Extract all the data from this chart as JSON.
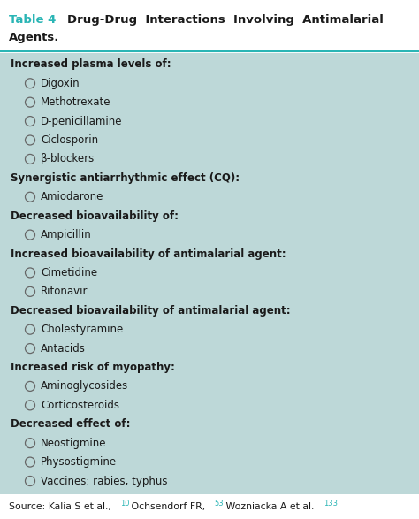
{
  "title_label": "Table 4",
  "title_color": "#2ab5b5",
  "bg_color": "#bdd8d8",
  "text_color": "#1a1a1a",
  "circle_color": "#666666",
  "rows": [
    {
      "type": "header",
      "text": "Increased plasma levels of:"
    },
    {
      "type": "item",
      "text": "Digoxin"
    },
    {
      "type": "item",
      "text": "Methotrexate"
    },
    {
      "type": "item",
      "text": "D-penicillamine"
    },
    {
      "type": "item",
      "text": "Ciclosporin"
    },
    {
      "type": "item",
      "text": "β-blockers"
    },
    {
      "type": "header",
      "text": "Synergistic antiarrhythmic effect (CQ):"
    },
    {
      "type": "item",
      "text": "Amiodarone"
    },
    {
      "type": "header",
      "text": "Decreased bioavailability of:"
    },
    {
      "type": "item",
      "text": "Ampicillin"
    },
    {
      "type": "header",
      "text": "Increased bioavailability of antimalarial agent:"
    },
    {
      "type": "item",
      "text": "Cimetidine"
    },
    {
      "type": "item",
      "text": "Ritonavir"
    },
    {
      "type": "header",
      "text": "Decreased bioavailability of antimalarial agent:"
    },
    {
      "type": "item",
      "text": "Cholestyramine"
    },
    {
      "type": "item",
      "text": "Antacids"
    },
    {
      "type": "header",
      "text": "Increased risk of myopathy:"
    },
    {
      "type": "item",
      "text": "Aminoglycosides"
    },
    {
      "type": "item",
      "text": "Corticosteroids"
    },
    {
      "type": "header",
      "text": "Decreased effect of:"
    },
    {
      "type": "item",
      "text": "Neostigmine"
    },
    {
      "type": "item",
      "text": "Physostigmine"
    },
    {
      "type": "item",
      "text": "Vaccines: rabies, typhus"
    }
  ],
  "figwidth": 4.74,
  "figheight": 5.87,
  "dpi": 100
}
